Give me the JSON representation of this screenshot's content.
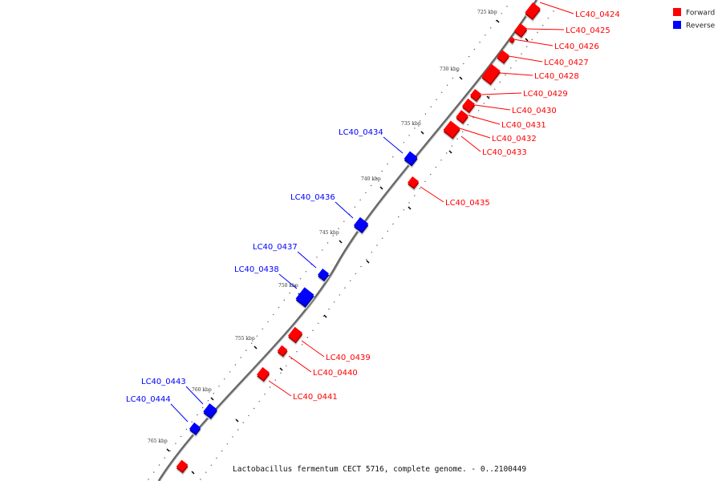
{
  "legend": {
    "forward": {
      "label": "Forward",
      "color": "#ff0000"
    },
    "reverse": {
      "label": "Reverse",
      "color": "#0000ff"
    }
  },
  "caption": "Lactobacillus fermentum CECT 5716, complete genome. - 0..2100449",
  "ticks": [
    "725 kbp",
    "730 kbp",
    "735 kbp",
    "740 kbp",
    "745 kbp",
    "750 kbp",
    "755 kbp",
    "760 kbp",
    "765 kbp"
  ],
  "genes_forward": [
    "LC40_0424",
    "LC40_0425",
    "LC40_0426",
    "LC40_0427",
    "LC40_0428",
    "LC40_0429",
    "LC40_0430",
    "LC40_0431",
    "LC40_0432",
    "LC40_0433",
    "LC40_0435",
    "LC40_0439",
    "LC40_0440",
    "LC40_0441"
  ],
  "genes_reverse": [
    "LC40_0434",
    "LC40_0436",
    "LC40_0437",
    "LC40_0438",
    "LC40_0443",
    "LC40_0444"
  ]
}
